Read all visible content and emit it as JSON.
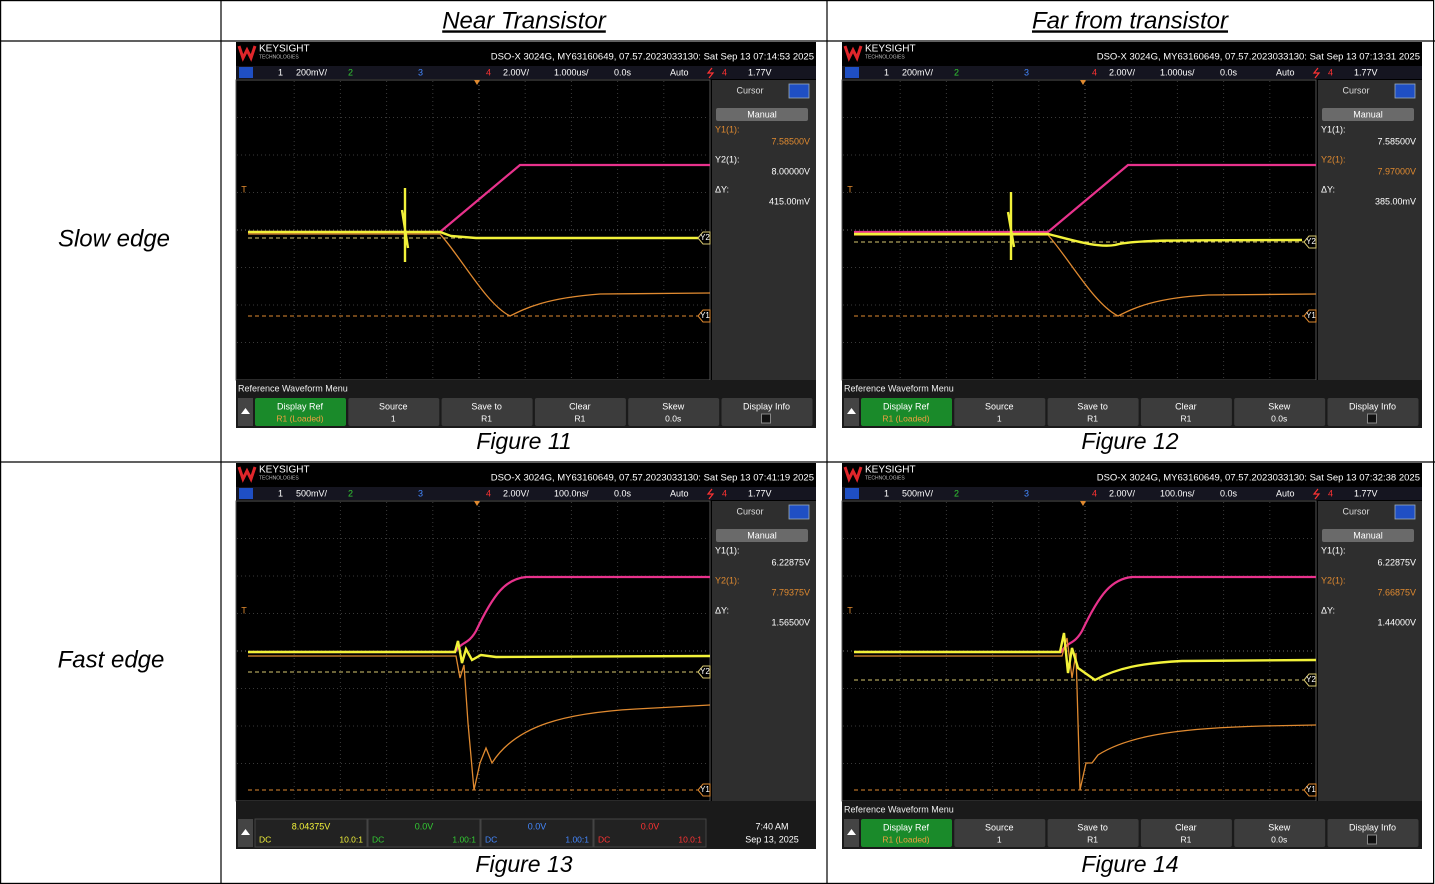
{
  "table": {
    "columns": [
      "Near Transistor",
      "Far from transistor"
    ],
    "rows": [
      {
        "label": "Slow edge",
        "cells": [
          {
            "caption": "Figure 11",
            "scope": {
              "brand": "KEYSIGHT",
              "brand_sub": "TECHNOLOGIES",
              "info": "DSO-X 3024G, MY63160649, 07.57.2023033130: Sat Sep 13 07:14:53 2025",
              "channels": [
                "1",
                "200mV/",
                "2",
                "3",
                "4",
                "2.00V/",
                "1.000us/",
                "0.0s",
                "Auto",
                "4",
                "1.77V"
              ],
              "trigger_marker": "T",
              "trace_labels": [
                "Y2",
                "Y1"
              ],
              "panel": {
                "title": "Cursor",
                "mode": "Manual",
                "active": 0,
                "readouts": [
                  {
                    "label": "Y1(1):",
                    "value": "7.58500V"
                  },
                  {
                    "label": "Y2(1):",
                    "value": "8.00000V"
                  },
                  {
                    "label": "ΔY:",
                    "value": "415.00mV"
                  }
                ]
              },
              "menu_title": "Reference Waveform Menu",
              "softkeys": [
                {
                  "label": "Display Ref",
                  "value": "R1 (Loaded)"
                },
                {
                  "label": "Source",
                  "value": "1"
                },
                {
                  "label": "Save to",
                  "value": "R1"
                },
                {
                  "label": "Clear",
                  "value": "R1"
                },
                {
                  "label": "Skew",
                  "value": "0.0s"
                },
                {
                  "label": "Display Info"
                }
              ]
            }
          },
          {
            "caption": "Figure 12",
            "scope": {
              "brand": "KEYSIGHT",
              "brand_sub": "TECHNOLOGIES",
              "info": "DSO-X 3024G, MY63160649, 07.57.2023033130: Sat Sep 13 07:13:31 2025",
              "channels": [
                "1",
                "200mV/",
                "2",
                "3",
                "4",
                "2.00V/",
                "1.000us/",
                "0.0s",
                "Auto",
                "4",
                "1.77V"
              ],
              "trigger_marker": "T",
              "trace_labels": [
                "Y2",
                "Y1"
              ],
              "panel": {
                "title": "Cursor",
                "mode": "Manual",
                "active": 1,
                "readouts": [
                  {
                    "label": "Y1(1):",
                    "value": "7.58500V"
                  },
                  {
                    "label": "Y2(1):",
                    "value": "7.97000V"
                  },
                  {
                    "label": "ΔY:",
                    "value": "385.00mV"
                  }
                ]
              },
              "menu_title": "Reference Waveform Menu",
              "softkeys": [
                {
                  "label": "Display Ref",
                  "value": "R1 (Loaded)"
                },
                {
                  "label": "Source",
                  "value": "1"
                },
                {
                  "label": "Save to",
                  "value": "R1"
                },
                {
                  "label": "Clear",
                  "value": "R1"
                },
                {
                  "label": "Skew",
                  "value": "0.0s"
                },
                {
                  "label": "Display Info"
                }
              ]
            }
          }
        ]
      },
      {
        "label": "Fast edge",
        "cells": [
          {
            "caption": "Figure 13",
            "scope": {
              "brand": "KEYSIGHT",
              "brand_sub": "TECHNOLOGIES",
              "info": "DSO-X 3024G, MY63160649, 07.57.2023033130: Sat Sep 13 07:41:19 2025",
              "channels": [
                "1",
                "500mV/",
                "2",
                "3",
                "4",
                "2.00V/",
                "100.0ns/",
                "0.0s",
                "Auto",
                "4",
                "1.77V"
              ],
              "trigger_marker": "T",
              "trace_labels": [
                "Y2",
                "Y1"
              ],
              "panel": {
                "title": "Cursor",
                "mode": "Manual",
                "active": 1,
                "readouts": [
                  {
                    "label": "Y1(1):",
                    "value": "6.22875V"
                  },
                  {
                    "label": "Y2(1):",
                    "value": "7.79375V"
                  },
                  {
                    "label": "ΔY:",
                    "value": "1.56500V"
                  }
                ]
              },
              "status": {
                "channels": [
                  {
                    "value": "8.04375V",
                    "coupling": "DC",
                    "probe": "10.0:1"
                  },
                  {
                    "value": "0.0V",
                    "coupling": "DC",
                    "probe": "1.00:1"
                  },
                  {
                    "value": "0.0V",
                    "coupling": "DC",
                    "probe": "1.00:1"
                  },
                  {
                    "value": "0.0V",
                    "coupling": "DC",
                    "probe": "10.0:1"
                  }
                ],
                "time": "7:40 AM",
                "date": "Sep 13, 2025"
              }
            }
          },
          {
            "caption": "Figure 14",
            "scope": {
              "brand": "KEYSIGHT",
              "brand_sub": "TECHNOLOGIES",
              "info": "DSO-X 3024G, MY63160649, 07.57.2023033130: Sat Sep 13 07:32:38 2025",
              "channels": [
                "1",
                "500mV/",
                "2",
                "3",
                "4",
                "2.00V/",
                "100.0ns/",
                "0.0s",
                "Auto",
                "4",
                "1.77V"
              ],
              "trigger_marker": "T",
              "trace_labels": [
                "Y2",
                "Y1"
              ],
              "panel": {
                "title": "Cursor",
                "mode": "Manual",
                "active": 1,
                "readouts": [
                  {
                    "label": "Y1(1):",
                    "value": "6.22875V"
                  },
                  {
                    "label": "Y2(1):",
                    "value": "7.66875V"
                  },
                  {
                    "label": "ΔY:",
                    "value": "1.44000V"
                  }
                ]
              },
              "menu_title": "Reference Waveform Menu",
              "softkeys": [
                {
                  "label": "Display Ref",
                  "value": "R1 (Loaded)"
                },
                {
                  "label": "Source",
                  "value": "1"
                },
                {
                  "label": "Save to",
                  "value": "R1"
                },
                {
                  "label": "Clear",
                  "value": "R1"
                },
                {
                  "label": "Skew",
                  "value": "0.0s"
                },
                {
                  "label": "Display Info"
                }
              ]
            }
          }
        ]
      }
    ]
  }
}
